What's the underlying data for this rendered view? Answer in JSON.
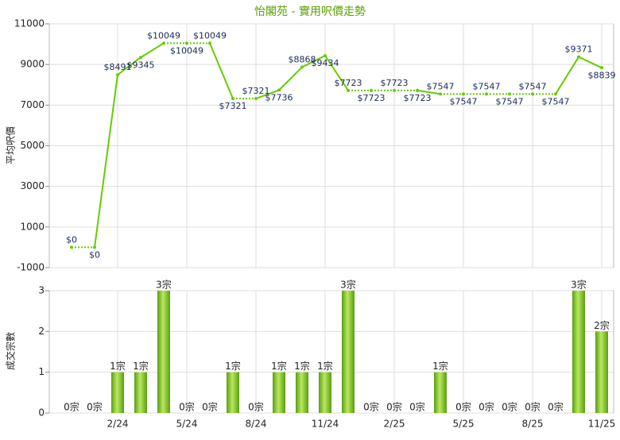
{
  "chart_data": [
    {
      "type": "line",
      "title": "怡閣苑 - 實用呎價走勢",
      "ylabel": "平均呎價",
      "color": "#66cc00",
      "grid": true,
      "values": [
        0,
        0,
        8491,
        9345,
        10049,
        10049,
        10049,
        7321,
        7321,
        7736,
        8868,
        9434,
        7723,
        7723,
        7723,
        7723,
        7547,
        7547,
        7547,
        7547,
        7547,
        7547,
        9371,
        8839
      ],
      "value_labels": [
        "$0",
        "$0",
        "$8491",
        "$9345",
        "$10049",
        "$10049",
        "$10049",
        "$7321",
        "$7321",
        "$7736",
        "$8868",
        "$9434",
        "$7723",
        "$7723",
        "$7723",
        "$7723",
        "$7547",
        "$7547",
        "$7547",
        "$7547",
        "$7547",
        "$7547",
        "$9371",
        "$8839"
      ],
      "ylim": [
        -1000,
        11000
      ],
      "yticks": [
        -1000,
        1000,
        3000,
        5000,
        7000,
        9000,
        11000
      ]
    },
    {
      "type": "bar",
      "ylabel": "成交宗數",
      "color": "#7cc420",
      "grid": true,
      "categories": [
        null,
        null,
        "2/24",
        null,
        null,
        "5/24",
        null,
        null,
        "8/24",
        null,
        null,
        "11/24",
        null,
        null,
        "2/25",
        null,
        null,
        "5/25",
        null,
        null,
        "8/25",
        null,
        null,
        "11/25"
      ],
      "values": [
        0,
        0,
        1,
        1,
        3,
        0,
        0,
        1,
        0,
        1,
        1,
        1,
        3,
        0,
        0,
        0,
        1,
        0,
        0,
        0,
        0,
        0,
        3,
        2
      ],
      "value_labels": [
        "0宗",
        "0宗",
        "1宗",
        "1宗",
        "3宗",
        "0宗",
        "0宗",
        "1宗",
        "0宗",
        "1宗",
        "1宗",
        "1宗",
        "3宗",
        "0宗",
        "0宗",
        "0宗",
        "1宗",
        "0宗",
        "0宗",
        "0宗",
        "0宗",
        "0宗",
        "3宗",
        "2宗"
      ],
      "ylim": [
        0,
        3
      ],
      "yticks": [
        0,
        1,
        2,
        3
      ]
    }
  ]
}
